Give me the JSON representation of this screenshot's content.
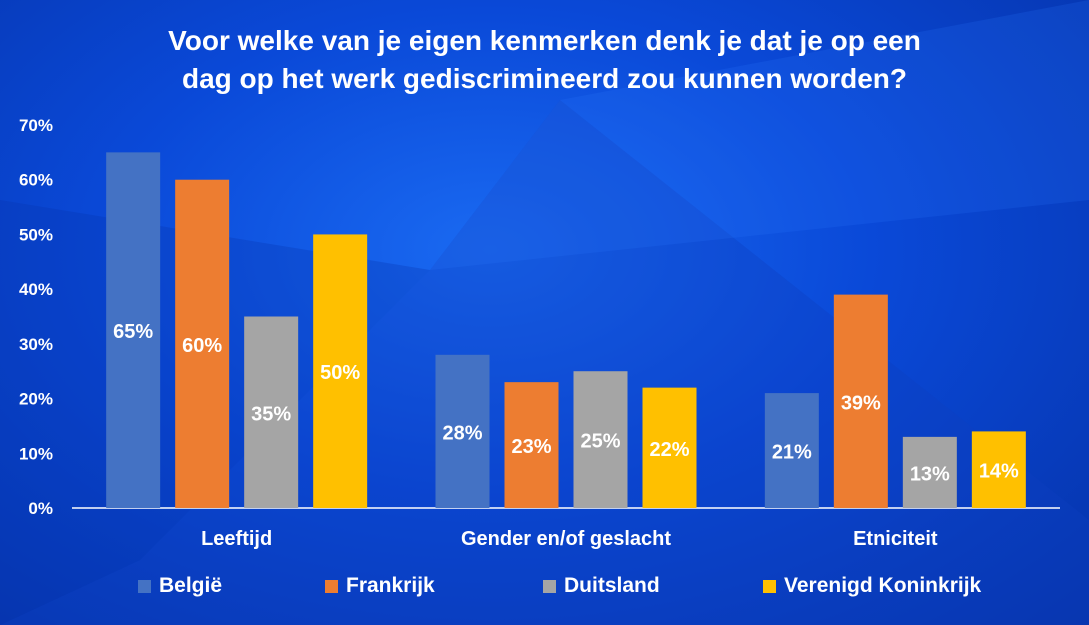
{
  "title_line1": "Voor welke van je eigen kenmerken denk je dat je op een",
  "title_line2": "dag op het werk gediscrimineerd zou kunnen worden?",
  "chart_data": {
    "type": "bar",
    "title": "Voor welke van je eigen kenmerken denk je dat je op een dag op het werk gediscrimineerd zou kunnen worden?",
    "categories": [
      "Leeftijd",
      "Gender en/of geslacht",
      "Etniciteit"
    ],
    "series": [
      {
        "name": "België",
        "color": "#4472c4",
        "values": [
          65,
          28,
          21
        ],
        "labels": [
          "65%",
          "28%",
          "21%"
        ]
      },
      {
        "name": "Frankrijk",
        "color": "#ed7d31",
        "values": [
          60,
          23,
          39
        ],
        "labels": [
          "60%",
          "23%",
          "39%"
        ]
      },
      {
        "name": "Duitsland",
        "color": "#a5a5a5",
        "values": [
          35,
          25,
          13
        ],
        "labels": [
          "35%",
          "25%",
          "13%"
        ]
      },
      {
        "name": "Verenigd Koninkrijk",
        "color": "#ffc000",
        "values": [
          50,
          22,
          14
        ],
        "labels": [
          "50%",
          "22%",
          "14%"
        ]
      }
    ],
    "yticks": [
      "0%",
      "10%",
      "20%",
      "30%",
      "40%",
      "50%",
      "60%",
      "70%"
    ],
    "ylim": [
      0,
      70
    ],
    "grid": false,
    "legend_position": "bottom"
  }
}
